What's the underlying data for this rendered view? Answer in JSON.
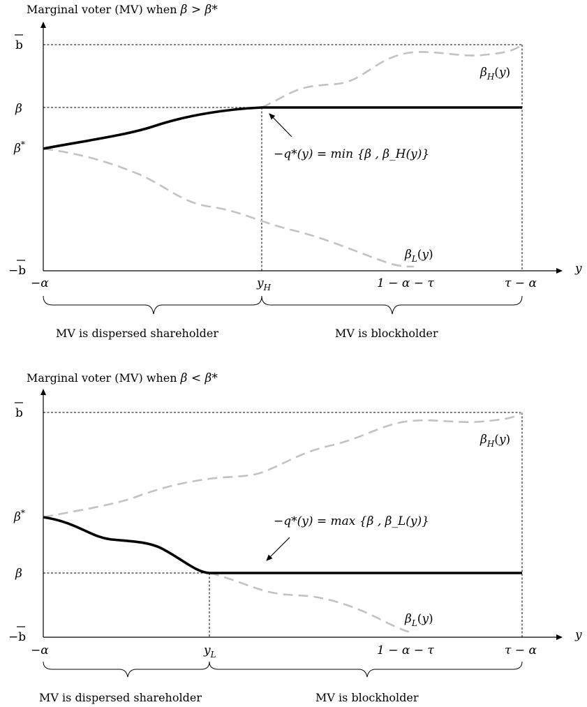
{
  "panel_top": {
    "title": "Marginal voter (MV) when",
    "title_cond": "β > β*",
    "y_ticks": [
      "b̄",
      "β",
      "β*",
      "−b̄"
    ],
    "x_ticks": [
      "−α",
      "y_H",
      "1 − α − τ",
      "τ − α"
    ],
    "x_axis_label": "y",
    "upper_curve_label": "β_H(y)",
    "lower_curve_label": "β_L(y)",
    "annotation": "−q*(y) = min {β , β_H(y)}",
    "region_left": "MV is dispersed shareholder",
    "region_right": "MV is blockholder"
  },
  "panel_bottom": {
    "title": "Marginal voter (MV) when",
    "title_cond": "β < β*",
    "y_ticks": [
      "b̄",
      "β*",
      "β",
      "−b̄"
    ],
    "x_ticks": [
      "−α",
      "y_L",
      "1 − α − τ",
      "τ − α"
    ],
    "x_axis_label": "y",
    "upper_curve_label": "β_H(y)",
    "lower_curve_label": "β_L(y)",
    "annotation": "−q*(y) = max {β , β_L(y)}",
    "region_left": "MV is dispersed shareholder",
    "region_right": "MV is blockholder"
  },
  "colors": {
    "mv_curve": "#000000",
    "bound_curves": "#c2c2c2",
    "guides": "#000000"
  }
}
